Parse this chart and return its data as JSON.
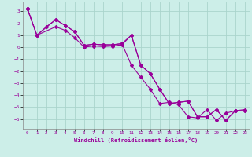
{
  "xlabel": "Windchill (Refroidissement éolien,°C)",
  "bg_color": "#cceee8",
  "grid_color": "#aad4cc",
  "line_color": "#990099",
  "xlim": [
    -0.5,
    23.5
  ],
  "ylim": [
    -6.8,
    3.8
  ],
  "yticks": [
    -6,
    -5,
    -4,
    -3,
    -2,
    -1,
    0,
    1,
    2,
    3
  ],
  "xticks": [
    0,
    1,
    2,
    3,
    4,
    5,
    6,
    7,
    8,
    9,
    10,
    11,
    12,
    13,
    14,
    15,
    16,
    17,
    18,
    19,
    20,
    21,
    22,
    23
  ],
  "series1_x": [
    0,
    1,
    3,
    4,
    5,
    6,
    7,
    8,
    9,
    10,
    11,
    12,
    13,
    14,
    15,
    16,
    17,
    18,
    19,
    20,
    21,
    22,
    23
  ],
  "series1_y": [
    3.2,
    1.0,
    2.3,
    1.8,
    1.3,
    0.15,
    0.25,
    0.2,
    0.2,
    0.3,
    1.0,
    -1.5,
    -2.2,
    -3.5,
    -4.7,
    -4.6,
    -4.5,
    -5.8,
    -5.8,
    -5.2,
    -6.1,
    -5.3,
    -5.3
  ],
  "series2_x": [
    0,
    1,
    3,
    4,
    5,
    6,
    7,
    8,
    9,
    10,
    11,
    12,
    13,
    14,
    15,
    16,
    17,
    18,
    19,
    20,
    21,
    22,
    23
  ],
  "series2_y": [
    3.2,
    1.0,
    1.7,
    1.4,
    0.8,
    0.0,
    0.1,
    0.05,
    0.1,
    0.2,
    1.0,
    -1.5,
    -2.2,
    -3.5,
    -4.7,
    -4.6,
    -4.5,
    -5.8,
    -5.8,
    -5.2,
    -6.1,
    -5.3,
    -5.3
  ],
  "series3_x": [
    0,
    1,
    2,
    3,
    4,
    5,
    6,
    7,
    8,
    9,
    10,
    11,
    12,
    13,
    14,
    15,
    16,
    17,
    18,
    19,
    20,
    21,
    22,
    23
  ],
  "series3_y": [
    3.2,
    1.0,
    1.7,
    2.3,
    1.8,
    1.3,
    0.15,
    0.25,
    0.2,
    0.2,
    0.3,
    -1.5,
    -2.5,
    -3.5,
    -4.7,
    -4.6,
    -4.8,
    -5.8,
    -5.9,
    -5.2,
    -6.1,
    -5.5,
    -5.3,
    -5.2
  ]
}
